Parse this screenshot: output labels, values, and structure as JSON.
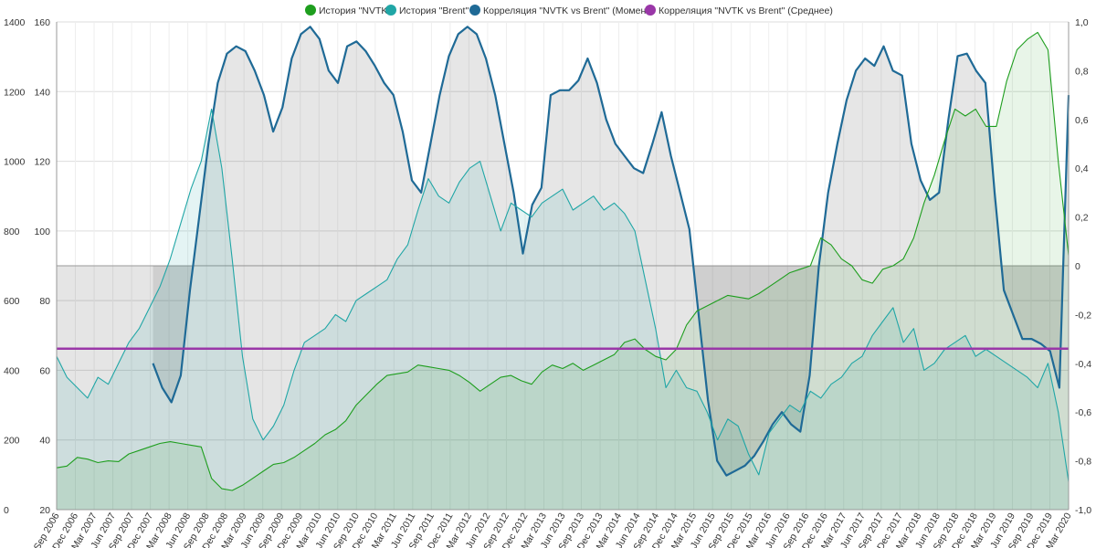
{
  "chart_data": {
    "type": "line",
    "title": "",
    "legend": {
      "placement": "top-center",
      "entries": [
        {
          "label": "История \"NVTK\"",
          "color": "#1e9e1e"
        },
        {
          "label": "История \"Brent\"",
          "color": "#20a6a6"
        },
        {
          "label": "Корреляция \"NVTK vs Brent\" (Момент)",
          "color": "#1f6a96"
        },
        {
          "label": "Корреляция \"NVTK vs Brent\" (Среднее)",
          "color": "#9a37a8"
        }
      ]
    },
    "x_labels": [
      "Sep 2006",
      "Dec 2006",
      "Mar 2007",
      "Jun 2007",
      "Sep 2007",
      "Dec 2007",
      "Mar 2008",
      "Jun 2008",
      "Sep 2008",
      "Dec 2008",
      "Mar 2009",
      "Jun 2009",
      "Sep 2009",
      "Dec 2009",
      "Mar 2010",
      "Jun 2010",
      "Sep 2010",
      "Dec 2010",
      "Mar 2011",
      "Jun 2011",
      "Sep 2011",
      "Dec 2011",
      "Mar 2012",
      "Jun 2012",
      "Sep 2012",
      "Dec 2012",
      "Mar 2013",
      "Jun 2013",
      "Sep 2013",
      "Dec 2013",
      "Mar 2014",
      "Jun 2014",
      "Sep 2014",
      "Dec 2014",
      "Mar 2015",
      "Jun 2015",
      "Sep 2015",
      "Dec 2015",
      "Mar 2016",
      "Jun 2016",
      "Sep 2016",
      "Dec 2016",
      "Mar 2017",
      "Jun 2017",
      "Sep 2017",
      "Dec 2017",
      "Mar 2018",
      "Jun 2018",
      "Sep 2018",
      "Dec 2018",
      "Mar 2019",
      "Jun 2019",
      "Sep 2019",
      "Dec 2019",
      "Mar 2020"
    ],
    "axes": {
      "nvtk": {
        "side": "left-outer",
        "min": 0,
        "max": 1400,
        "ticks": [
          "0",
          "200",
          "400",
          "600",
          "800",
          "1000",
          "1200",
          "1400"
        ]
      },
      "brent": {
        "side": "left-inner",
        "min": 20,
        "max": 160,
        "ticks": [
          "20",
          "40",
          "60",
          "80",
          "100",
          "120",
          "140",
          "160"
        ]
      },
      "corr": {
        "side": "right",
        "min": -1,
        "max": 1,
        "ticks": [
          "-1,0",
          "-0,8",
          "-0,6",
          "-0,4",
          "-0,2",
          "0",
          "0,2",
          "0,4",
          "0,6",
          "0,8",
          "1,0"
        ]
      }
    },
    "grid": true,
    "series": [
      {
        "name": "История \"NVTK\"",
        "axis": "nvtk",
        "color": "#1e9e1e",
        "fill": true,
        "values": [
          120,
          125,
          150,
          145,
          135,
          140,
          138,
          160,
          170,
          180,
          190,
          195,
          190,
          185,
          180,
          90,
          60,
          55,
          70,
          90,
          110,
          130,
          135,
          150,
          170,
          190,
          215,
          230,
          255,
          300,
          330,
          360,
          385,
          390,
          395,
          415,
          410,
          405,
          400,
          385,
          365,
          340,
          360,
          380,
          385,
          370,
          360,
          395,
          415,
          405,
          420,
          400,
          415,
          430,
          445,
          480,
          490,
          460,
          440,
          430,
          460,
          530,
          570,
          585,
          600,
          615,
          610,
          605,
          620,
          640,
          660,
          680,
          690,
          700,
          780,
          760,
          720,
          700,
          660,
          650,
          690,
          700,
          720,
          780,
          880,
          960,
          1060,
          1150,
          1130,
          1150,
          1100,
          1100,
          1230,
          1320,
          1350,
          1370,
          1320,
          1000,
          730
        ]
      },
      {
        "name": "История \"Brent\"",
        "axis": "brent",
        "color": "#20a6a6",
        "fill": true,
        "values": [
          64,
          58,
          55,
          52,
          58,
          56,
          62,
          68,
          72,
          78,
          84,
          92,
          102,
          112,
          120,
          135,
          118,
          92,
          64,
          46,
          40,
          44,
          50,
          60,
          68,
          70,
          72,
          76,
          74,
          80,
          82,
          84,
          86,
          92,
          96,
          106,
          115,
          110,
          108,
          114,
          118,
          120,
          110,
          100,
          108,
          106,
          104,
          108,
          110,
          112,
          106,
          108,
          110,
          106,
          108,
          105,
          100,
          86,
          72,
          55,
          60,
          55,
          54,
          48,
          40,
          46,
          44,
          36,
          30,
          42,
          46,
          50,
          48,
          54,
          52,
          56,
          58,
          62,
          64,
          70,
          74,
          78,
          68,
          72,
          60,
          62,
          66,
          68,
          70,
          64,
          66,
          64,
          62,
          60,
          58,
          55,
          62,
          48,
          28
        ]
      },
      {
        "name": "Корреляция \"NVTK vs Brent\" (Момент)",
        "axis": "corr",
        "color": "#1f6a96",
        "fill": true,
        "x_range": [
          0.0952,
          1.0
        ],
        "values": [
          -0.4,
          -0.5,
          -0.56,
          -0.45,
          -0.1,
          0.2,
          0.5,
          0.75,
          0.87,
          0.9,
          0.88,
          0.8,
          0.7,
          0.55,
          0.65,
          0.85,
          0.95,
          0.98,
          0.93,
          0.8,
          0.75,
          0.9,
          0.92,
          0.88,
          0.82,
          0.75,
          0.7,
          0.55,
          0.35,
          0.3,
          0.5,
          0.7,
          0.86,
          0.95,
          0.98,
          0.95,
          0.85,
          0.7,
          0.5,
          0.3,
          0.05,
          0.25,
          0.32,
          0.7,
          0.72,
          0.72,
          0.76,
          0.85,
          0.75,
          0.6,
          0.5,
          0.45,
          0.4,
          0.38,
          0.5,
          0.63,
          0.45,
          0.3,
          0.15,
          -0.2,
          -0.55,
          -0.8,
          -0.86,
          -0.84,
          -0.82,
          -0.78,
          -0.72,
          -0.65,
          -0.6,
          -0.65,
          -0.68,
          -0.45,
          0.0,
          0.3,
          0.5,
          0.68,
          0.8,
          0.85,
          0.82,
          0.9,
          0.8,
          0.78,
          0.5,
          0.35,
          0.27,
          0.3,
          0.6,
          0.86,
          0.87,
          0.8,
          0.75,
          0.3,
          -0.1,
          -0.2,
          -0.3,
          -0.3,
          -0.32,
          -0.35,
          -0.5,
          0.7
        ]
      },
      {
        "name": "Корреляция \"NVTK vs Brent\" (Среднее)",
        "axis": "corr",
        "color": "#9a37a8",
        "fill": false,
        "value": -0.34
      }
    ]
  }
}
